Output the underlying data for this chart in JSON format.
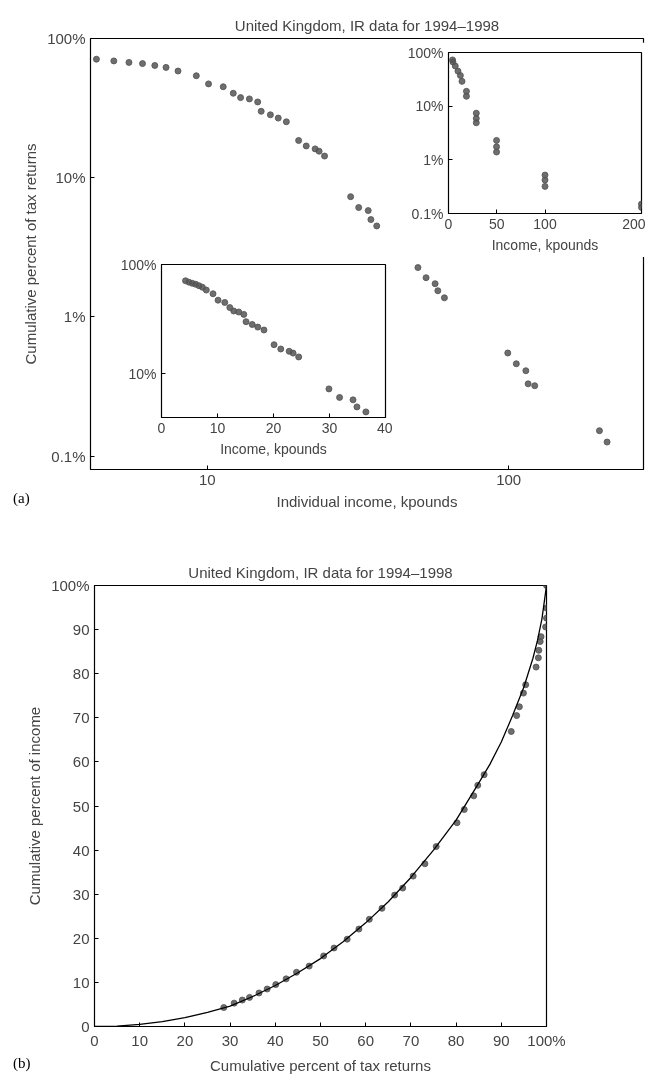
{
  "chart_data": [
    {
      "type": "scatter",
      "title": "United Kingdom, IR data for 1994–1998",
      "xlabel": "Individual income, kpounds",
      "ylabel": "Cumulative percent of tax returns",
      "log": "xy",
      "marker": "circle",
      "xlim": [
        4.1,
        280
      ],
      "ylim": [
        0.08,
        100
      ],
      "xticks": [
        10,
        100
      ],
      "yticks": [
        {
          "value": 0.1,
          "label": "0.1%"
        },
        {
          "value": 1,
          "label": "1%"
        },
        {
          "value": 10,
          "label": "10%"
        },
        {
          "value": 100,
          "label": "100%"
        }
      ],
      "annotations": [
        "(a)"
      ],
      "series": [
        {
          "color": "#555555",
          "x": [
            4.29,
            4.9,
            5.5,
            6.1,
            6.7,
            7.3,
            8.0,
            9.2,
            10.1,
            11.3,
            12.2,
            12.9,
            13.8,
            14.7,
            15.1,
            16.2,
            17.2,
            18.3,
            20.1,
            21.3,
            22.8,
            23.5,
            24.5,
            29.9,
            31.8,
            34.2,
            34.9,
            36.5,
            50,
            53.2,
            57,
            58.2,
            61.2,
            99.3,
            106,
            114,
            116,
            122,
            200,
            212
          ],
          "values": [
            71,
            69,
            67.3,
            66,
            64,
            62,
            58.4,
            54,
            47.2,
            45,
            40.4,
            37.6,
            36.8,
            35,
            30,
            28.3,
            26.8,
            25.2,
            18.5,
            16.9,
            16.1,
            15.5,
            14.3,
            7.3,
            6.1,
            5.8,
            5.0,
            4.5,
            2.26,
            1.91,
            1.73,
            1.54,
            1.37,
            0.55,
            0.46,
            0.41,
            0.33,
            0.32,
            0.152,
            0.126
          ]
        }
      ]
    },
    {
      "type": "scatter",
      "xlabel": "Income, kpounds",
      "log": "y",
      "marker": "circle",
      "xlim": [
        0,
        200
      ],
      "ylim": [
        0.1,
        100
      ],
      "xticks": [
        0,
        50,
        100,
        200
      ],
      "yticks": [
        {
          "value": 0.1,
          "label": "0.1%"
        },
        {
          "value": 1,
          "label": "1%"
        },
        {
          "value": 10,
          "label": "10%"
        },
        {
          "value": 100,
          "label": "100%"
        }
      ],
      "series": [
        {
          "color": "#555555",
          "x": [
            4.2,
            4.6,
            7.0,
            9.8,
            12.3,
            14.0,
            18.6,
            18.6,
            28.8,
            28.8,
            28.8,
            49.8,
            49.8,
            49.8,
            100,
            100,
            100,
            200,
            200
          ],
          "values": [
            72.7,
            66.7,
            56,
            45,
            37.3,
            29,
            18.9,
            15.3,
            7.4,
            5.9,
            4.9,
            2.3,
            1.75,
            1.4,
            0.52,
            0.42,
            0.32,
            0.15,
            0.13
          ]
        }
      ]
    },
    {
      "type": "scatter",
      "xlabel": "Income, kpounds",
      "log": "y",
      "marker": "circle",
      "xlim": [
        0,
        40
      ],
      "ylim": [
        4,
        100
      ],
      "xticks": [
        0,
        10,
        20,
        30,
        40
      ],
      "yticks": [
        {
          "value": 10,
          "label": "10%"
        },
        {
          "value": 100,
          "label": "100%"
        }
      ],
      "series": [
        {
          "color": "#555555",
          "x": [
            4.29,
            4.9,
            5.5,
            6.1,
            6.7,
            7.3,
            8.0,
            9.2,
            10.1,
            11.3,
            12.2,
            12.9,
            13.8,
            14.7,
            15.1,
            16.2,
            17.2,
            18.3,
            20.1,
            21.3,
            22.8,
            23.5,
            24.5,
            29.9,
            31.8,
            34.2,
            34.9,
            36.5
          ],
          "values": [
            71,
            69,
            67.3,
            66,
            64,
            62,
            58.4,
            54,
            47.2,
            45,
            40.4,
            37.6,
            36.8,
            35,
            30,
            28.3,
            26.8,
            25.2,
            18.5,
            16.9,
            16.1,
            15.5,
            14.3,
            7.3,
            6.1,
            5.8,
            5.0,
            4.5
          ]
        }
      ]
    },
    {
      "type": "scatter",
      "title": "United Kingdom, IR data for 1994–1998",
      "xlabel": "Cumulative percent of tax returns",
      "ylabel": "Cumulative percent of income",
      "xlim": [
        0,
        100
      ],
      "ylim": [
        0,
        100
      ],
      "xticks": [
        0,
        10,
        20,
        30,
        40,
        50,
        60,
        70,
        80,
        90,
        {
          "value": 100,
          "label": "100%"
        }
      ],
      "yticks": [
        0,
        10,
        20,
        30,
        40,
        50,
        60,
        70,
        80,
        90,
        {
          "value": 100,
          "label": "100%"
        }
      ],
      "annotations": [
        "(b)"
      ],
      "series": [
        {
          "color": "#555555",
          "marker": "circle",
          "x": [
            28.6,
            30.9,
            32.7,
            34.3,
            36.4,
            38.2,
            40.1,
            42.4,
            44.7,
            47.5,
            50.7,
            53.0,
            55.9,
            58.5,
            60.8,
            63.6,
            66.4,
            68.2,
            70.5,
            73.1,
            75.6,
            80.2,
            81.8,
            83.9,
            84.8,
            86.2,
            92.2,
            93.4,
            94.0,
            94.9,
            95.4,
            97.7,
            98.2,
            98.3,
            98.6,
            98.8,
            99.8,
            100,
            100,
            100
          ],
          "values": [
            4.3,
            5.3,
            6.0,
            6.6,
            7.6,
            8.5,
            9.5,
            10.8,
            12.3,
            13.7,
            16.0,
            17.8,
            19.8,
            22.1,
            24.3,
            26.8,
            29.8,
            31.4,
            34.1,
            36.9,
            40.8,
            46.2,
            49.2,
            52.3,
            54.7,
            57.1,
            66.9,
            70.5,
            72.5,
            75.6,
            77.5,
            81.5,
            83.6,
            85.3,
            87.3,
            88.4,
            90.6,
            92.6,
            94.9,
            100
          ]
        },
        {
          "type": "line",
          "color": "#000000",
          "x": [
            0,
            5,
            10,
            15,
            20,
            25,
            30,
            35,
            40,
            45,
            50,
            55,
            60,
            65,
            70,
            75,
            80,
            85,
            87.5,
            90,
            92.5,
            95,
            97,
            98,
            99,
            100
          ],
          "values": [
            0,
            0.1,
            0.5,
            1.1,
            2,
            3.2,
            4.6,
            6.8,
            9.3,
            12.2,
            15.4,
            19.2,
            23.5,
            28.3,
            33.8,
            40,
            46.8,
            55.2,
            59.5,
            64.5,
            70.5,
            77,
            83.5,
            87.5,
            92.5,
            100
          ]
        }
      ]
    }
  ]
}
